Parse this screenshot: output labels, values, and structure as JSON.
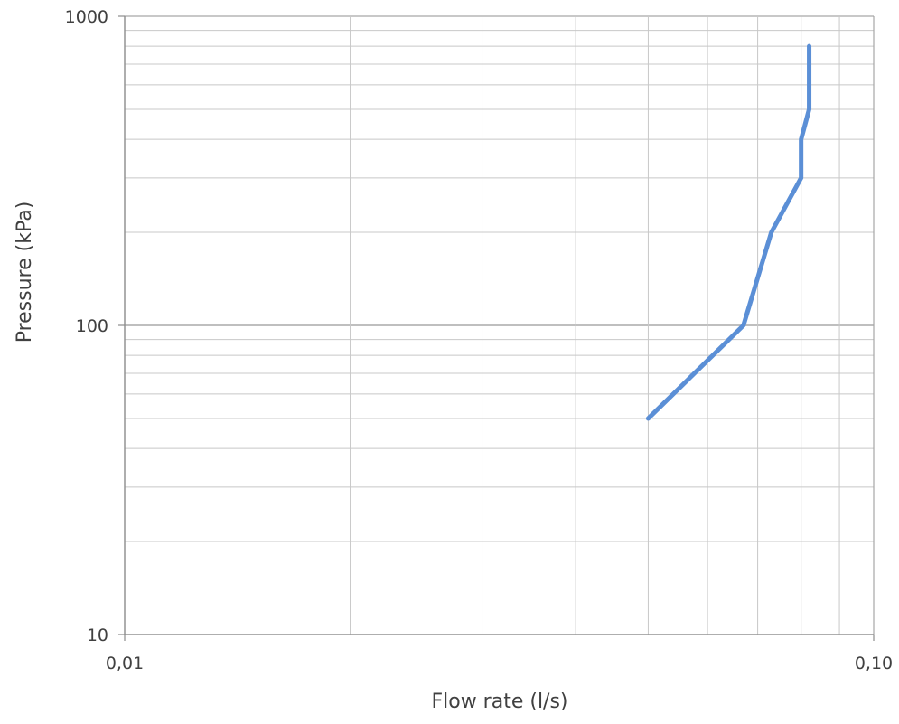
{
  "chart_data": {
    "type": "line",
    "title": "",
    "xlabel": "Flow rate (l/s)",
    "ylabel": "Pressure (kPa)",
    "x_scale": "log",
    "y_scale": "log",
    "xlim": [
      0.01,
      0.1
    ],
    "ylim": [
      10,
      1000
    ],
    "x_ticks": [
      {
        "value": 0.01,
        "label": "0,01"
      },
      {
        "value": 0.1,
        "label": "0,10"
      }
    ],
    "y_ticks": [
      {
        "value": 10,
        "label": "10"
      },
      {
        "value": 100,
        "label": "100"
      },
      {
        "value": 1000,
        "label": "1000"
      }
    ],
    "grid": true,
    "legend": "none",
    "series": [
      {
        "color": "#5B8FD6",
        "x": [
          0.05,
          0.067,
          0.073,
          0.08,
          0.08,
          0.082,
          0.082
        ],
        "y": [
          50,
          100,
          200,
          300,
          400,
          500,
          800
        ]
      }
    ]
  }
}
